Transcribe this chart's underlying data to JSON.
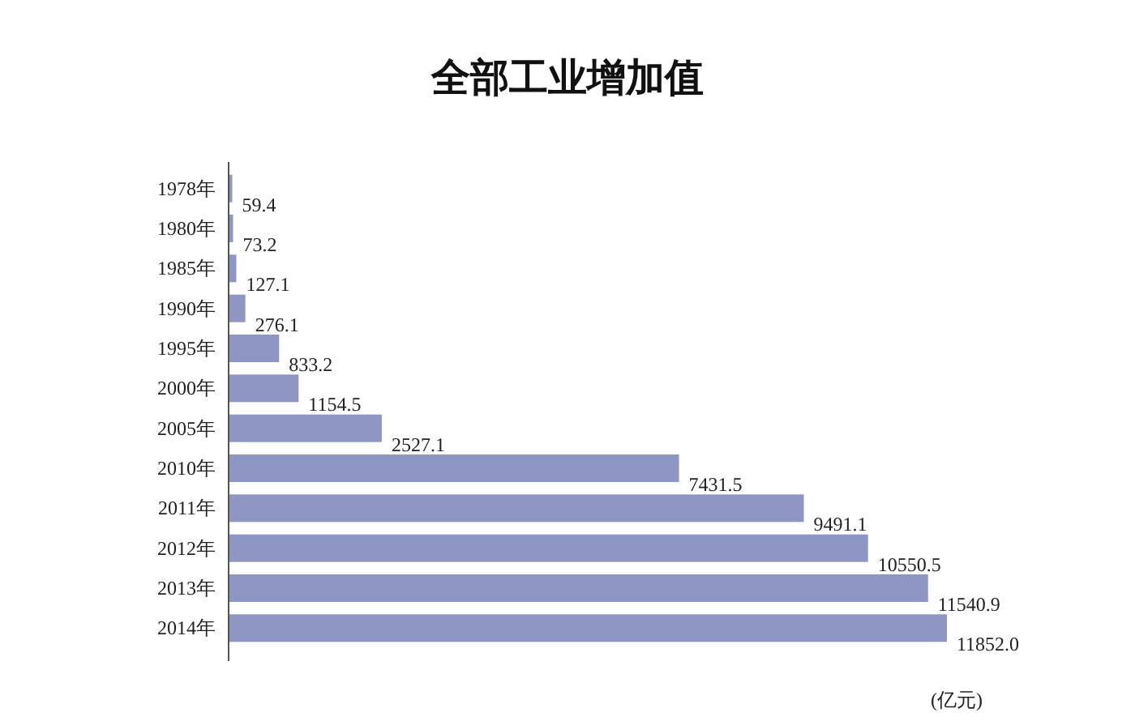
{
  "chart_data": {
    "type": "bar",
    "orientation": "horizontal",
    "title": "全部工业增加值",
    "categories": [
      "1978年",
      "1980年",
      "1985年",
      "1990年",
      "1995年",
      "2000年",
      "2005年",
      "2010年",
      "2011年",
      "2012年",
      "2013年",
      "2014年"
    ],
    "values": [
      59.4,
      73.2,
      127.1,
      276.1,
      833.2,
      1154.5,
      2527.1,
      7431.5,
      9491.1,
      10550.5,
      11540.9,
      11852.0
    ],
    "value_labels": [
      "59.4",
      "73.2",
      "127.1",
      "276.1",
      "833.2",
      "1154.5",
      "2527.1",
      "7431.5",
      "9491.1",
      "10550.5",
      "11540.9",
      "11852.0"
    ],
    "color": "#8e96c4",
    "annotations": [
      "(亿元)"
    ]
  }
}
